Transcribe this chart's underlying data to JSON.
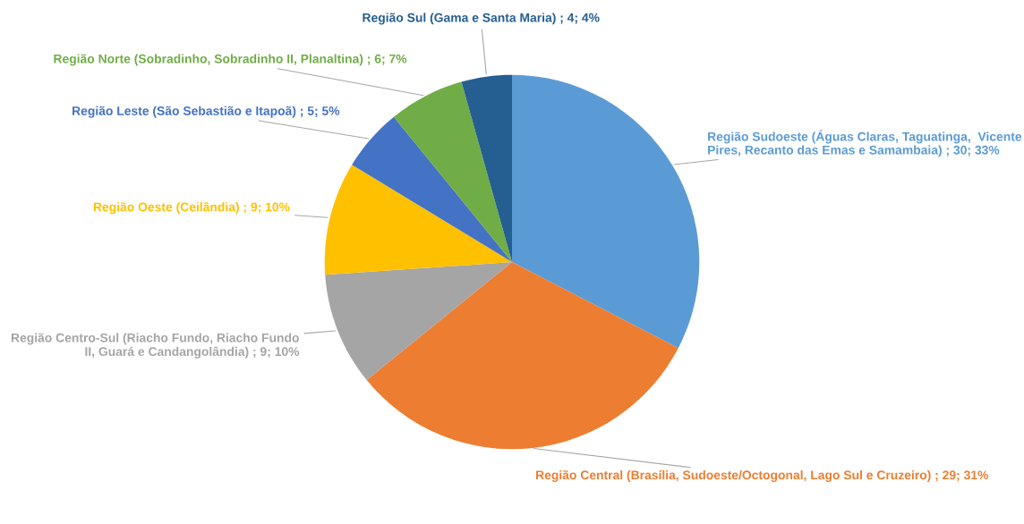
{
  "chart_data": {
    "type": "pie",
    "categories": [
      "Região Sudoeste (Águas Claras, Taguatinga,  Vicente Pires, Recanto das Emas e Samambaia)",
      "Região Central (Brasília, Sudoeste/Octogonal, Lago Sul e Cruzeiro)",
      "Região Centro-Sul (Riacho Fundo, Riacho Fundo II, Guará e Candangolândia)",
      "Região Oeste (Ceilândia)",
      "Região Leste (São Sebastião e Itapoã)",
      "Região Norte (Sobradinho, Sobradinho II, Planaltina)",
      "Região Sul (Gama e Santa Maria)"
    ],
    "values": [
      30,
      29,
      9,
      9,
      5,
      6,
      4
    ],
    "value_labels": [
      "30; 33%",
      "29; 31%",
      "9; 10%",
      "9; 10%",
      "5; 5%",
      "6; 7%",
      "4; 4%"
    ],
    "colors": [
      "#5b9bd5",
      "#ed7d31",
      "#a5a5a5",
      "#ffc000",
      "#4472c4",
      "#70ad47",
      "#255e91"
    ],
    "legend": false
  }
}
